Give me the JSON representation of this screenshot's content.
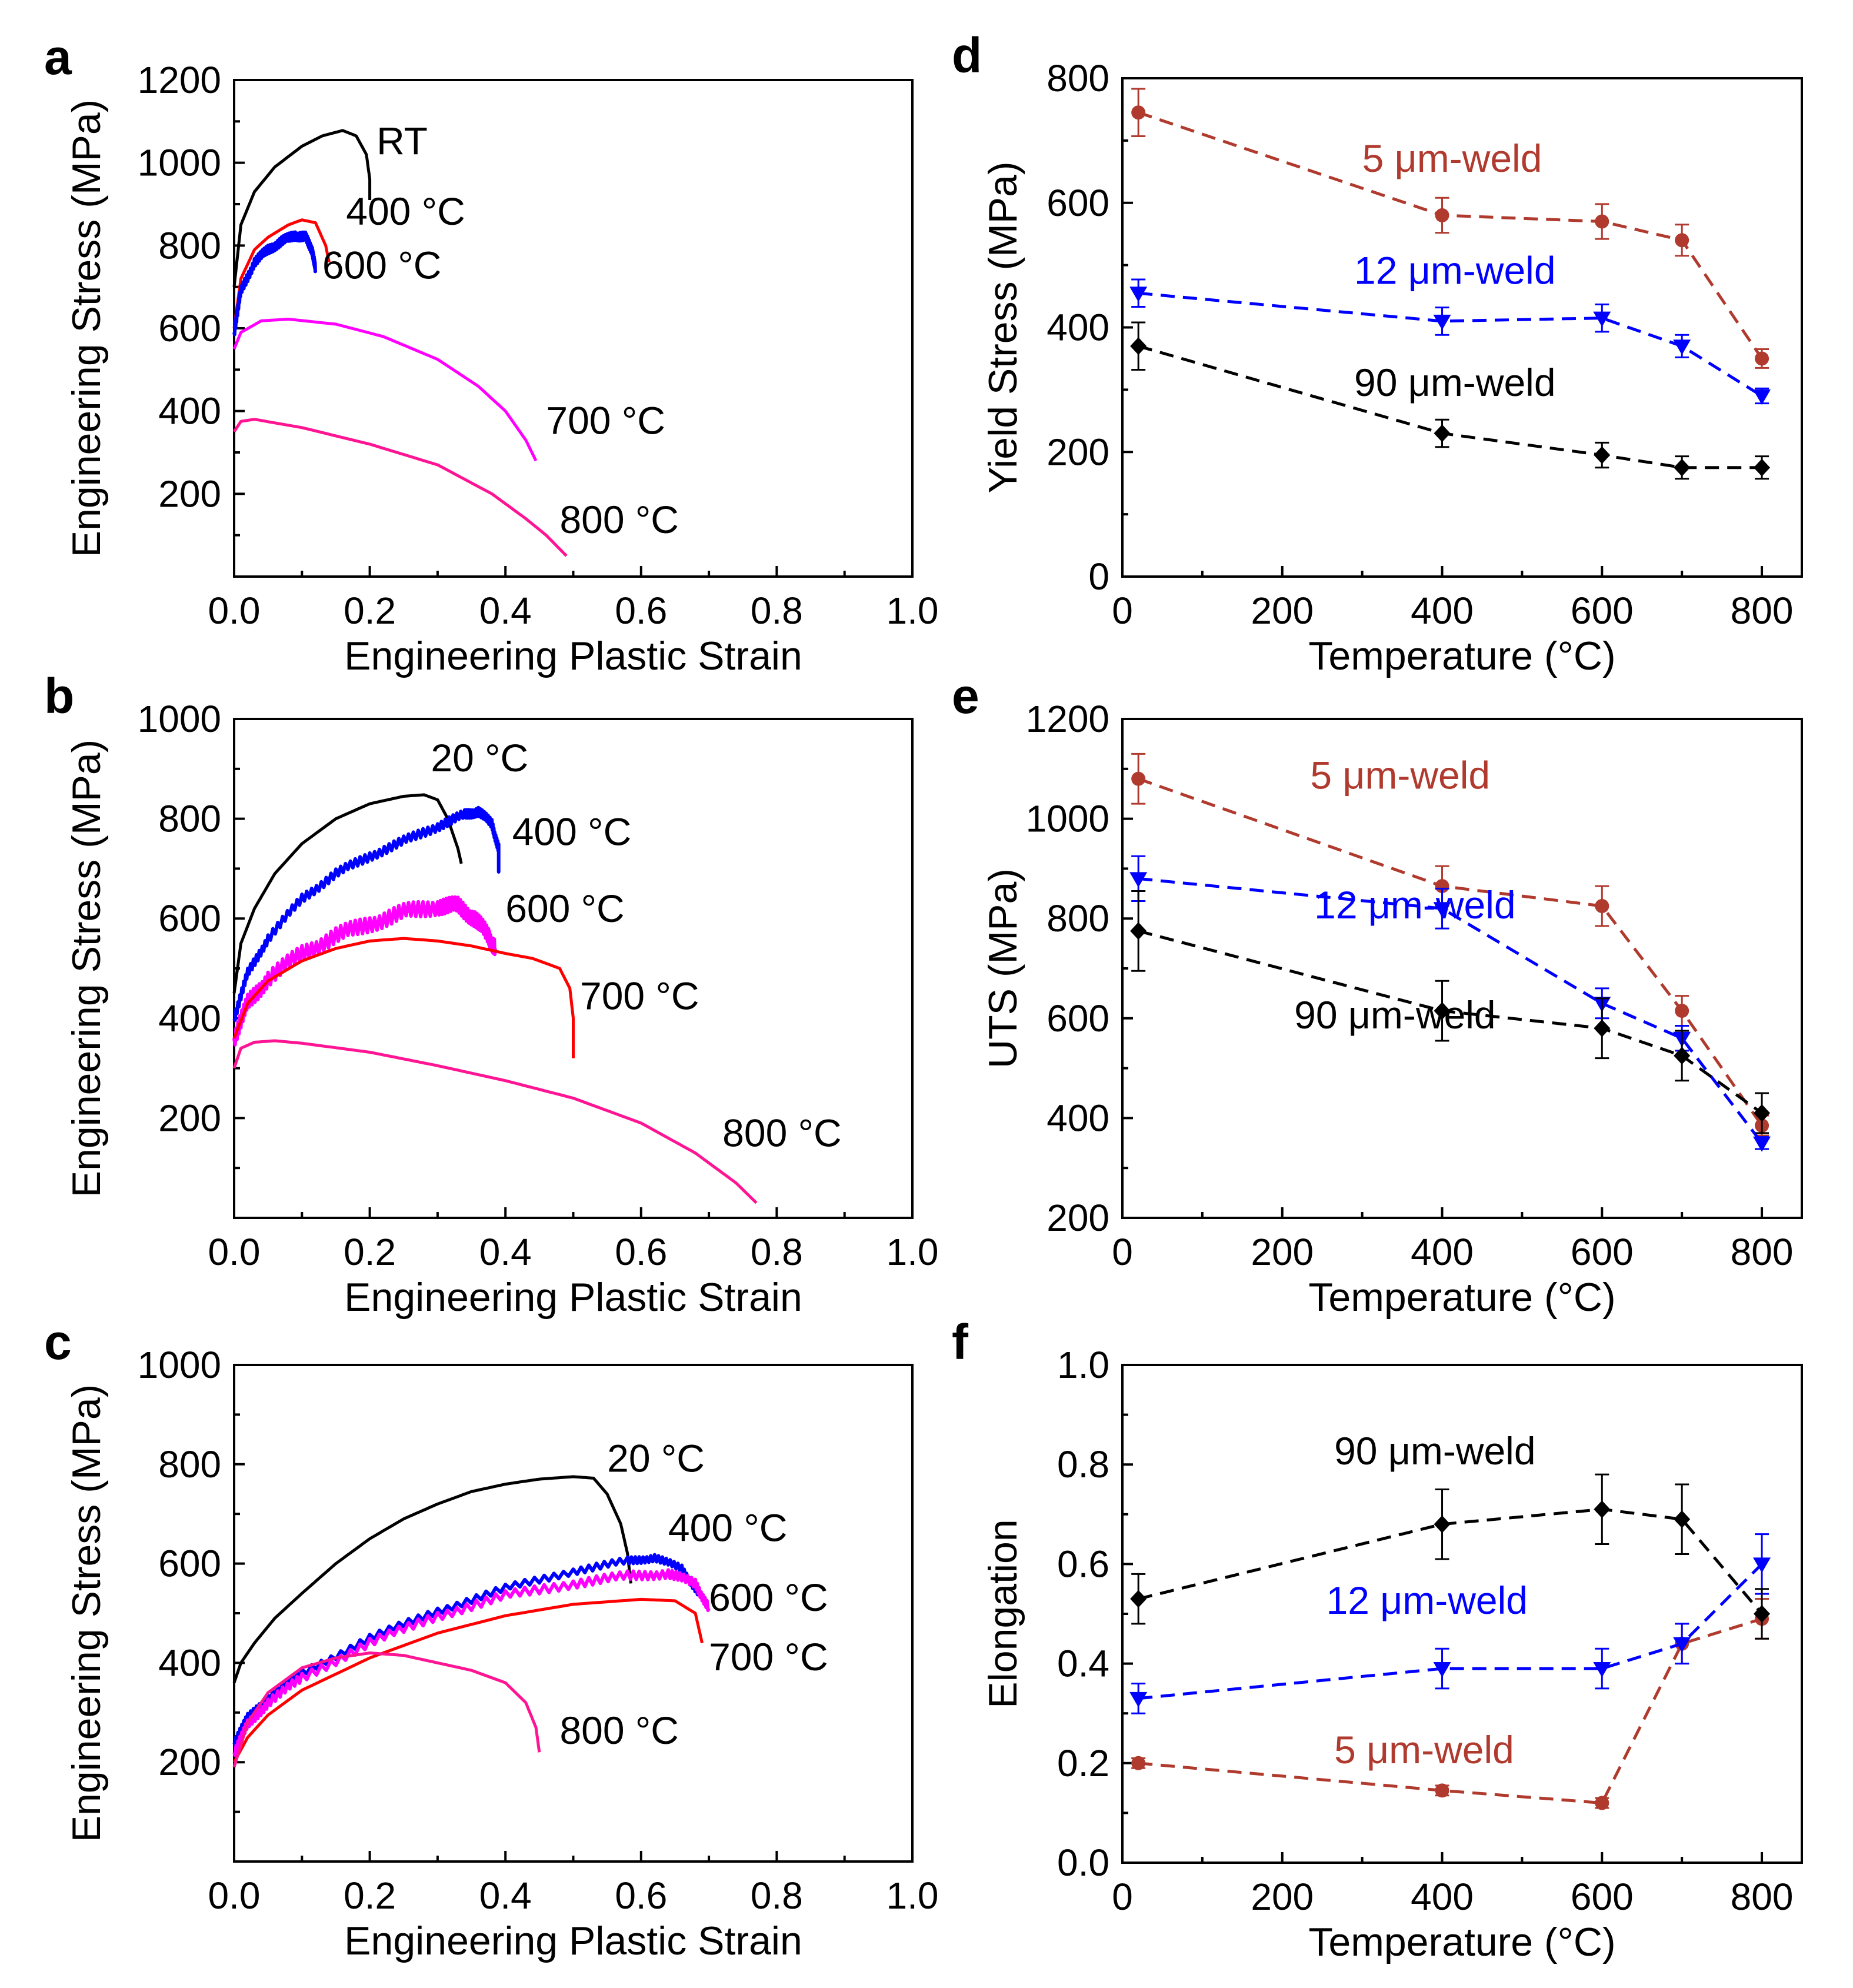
{
  "chart_data": [
    {
      "id": "a",
      "type": "line",
      "panel_label": "a",
      "xlabel": "Engineering Plastic Strain",
      "ylabel": "Engineering Stress (MPa)",
      "xlim": [
        0,
        1.0
      ],
      "ylim": [
        0,
        1200
      ],
      "xticks": [
        0,
        0.2,
        0.4,
        0.6,
        0.8,
        1.0
      ],
      "xtick_labels": [
        "0.0",
        "0.2",
        "0.4",
        "0.6",
        "0.8",
        "1.0"
      ],
      "yticks": [
        200,
        400,
        600,
        800,
        1000,
        1200
      ],
      "ytick_labels": [
        "200",
        "400",
        "600",
        "800",
        "1000",
        "1200"
      ],
      "series": [
        {
          "name": "RT",
          "color": "#000000",
          "label_at": [
            0.21,
            1020
          ],
          "x": [
            0,
            0.01,
            0.03,
            0.06,
            0.1,
            0.13,
            0.16,
            0.18,
            0.195,
            0.2,
            0.2
          ],
          "y": [
            700,
            850,
            930,
            990,
            1040,
            1065,
            1078,
            1065,
            1020,
            960,
            910
          ]
        },
        {
          "name": "400 °C",
          "color": "#ff0000",
          "label_at": [
            0.165,
            850
          ],
          "x": [
            0,
            0.01,
            0.03,
            0.05,
            0.08,
            0.1,
            0.12,
            0.135,
            0.14
          ],
          "y": [
            600,
            720,
            790,
            820,
            850,
            862,
            855,
            800,
            760
          ]
        },
        {
          "name": "600 °C",
          "color": "#0000ff",
          "noise": 12,
          "label_at": [
            0.13,
            720
          ],
          "x": [
            0,
            0.01,
            0.03,
            0.05,
            0.07,
            0.09,
            0.105,
            0.115,
            0.12
          ],
          "y": [
            590,
            690,
            760,
            790,
            810,
            825,
            820,
            790,
            740
          ]
        },
        {
          "name": "700 °C",
          "color": "#ff00ff",
          "label_at": [
            0.46,
            345
          ],
          "x": [
            0,
            0.01,
            0.04,
            0.08,
            0.15,
            0.22,
            0.3,
            0.36,
            0.4,
            0.43,
            0.445
          ],
          "y": [
            550,
            590,
            618,
            622,
            610,
            580,
            525,
            460,
            400,
            330,
            280
          ]
        },
        {
          "name": "800 °C",
          "color": "#ff1493",
          "label_at": [
            0.48,
            105
          ],
          "x": [
            0,
            0.01,
            0.03,
            0.1,
            0.2,
            0.3,
            0.38,
            0.43,
            0.46,
            0.49
          ],
          "y": [
            350,
            375,
            380,
            360,
            320,
            270,
            200,
            140,
            100,
            50
          ]
        }
      ]
    },
    {
      "id": "b",
      "type": "line",
      "panel_label": "b",
      "xlabel": "Engineering Plastic Strain",
      "ylabel": "Engineering Stress (MPa)",
      "xlim": [
        0,
        1.0
      ],
      "ylim": [
        0,
        1000
      ],
      "xticks": [
        0,
        0.2,
        0.4,
        0.6,
        0.8,
        1.0
      ],
      "xtick_labels": [
        "0.0",
        "0.2",
        "0.4",
        "0.6",
        "0.8",
        "1.0"
      ],
      "yticks": [
        200,
        400,
        600,
        800,
        1000
      ],
      "ytick_labels": [
        "200",
        "400",
        "600",
        "800",
        "1000"
      ],
      "series": [
        {
          "name": "20 °C",
          "color": "#000000",
          "label_at": [
            0.29,
            895
          ],
          "x": [
            0,
            0.01,
            0.03,
            0.06,
            0.1,
            0.15,
            0.2,
            0.25,
            0.28,
            0.3,
            0.315,
            0.33,
            0.335
          ],
          "y": [
            450,
            550,
            620,
            690,
            750,
            800,
            830,
            845,
            848,
            838,
            800,
            740,
            710
          ]
        },
        {
          "name": "400 °C",
          "color": "#0000ff",
          "noise": 10,
          "label_at": [
            0.41,
            747
          ],
          "x": [
            0,
            0.02,
            0.05,
            0.1,
            0.15,
            0.2,
            0.25,
            0.3,
            0.34,
            0.36,
            0.38,
            0.39,
            0.39
          ],
          "y": [
            400,
            490,
            560,
            640,
            690,
            725,
            755,
            785,
            808,
            815,
            790,
            740,
            700
          ]
        },
        {
          "name": "600 °C",
          "color": "#ff00ff",
          "noise": 18,
          "label_at": [
            0.4,
            593
          ],
          "x": [
            0,
            0.02,
            0.05,
            0.1,
            0.15,
            0.2,
            0.25,
            0.3,
            0.33,
            0.355,
            0.375,
            0.385
          ],
          "y": [
            360,
            430,
            480,
            530,
            565,
            590,
            612,
            625,
            625,
            600,
            565,
            540
          ]
        },
        {
          "name": "700 °C",
          "color": "#ff0000",
          "label_at": [
            0.51,
            418
          ],
          "x": [
            0,
            0.02,
            0.05,
            0.1,
            0.15,
            0.2,
            0.25,
            0.3,
            0.35,
            0.4,
            0.44,
            0.48,
            0.495,
            0.5,
            0.5
          ],
          "y": [
            360,
            430,
            475,
            515,
            540,
            555,
            560,
            555,
            545,
            530,
            520,
            500,
            460,
            400,
            320
          ]
        },
        {
          "name": "800 °C",
          "color": "#ff1493",
          "label_at": [
            0.72,
            143
          ],
          "x": [
            0,
            0.01,
            0.03,
            0.06,
            0.1,
            0.2,
            0.3,
            0.4,
            0.5,
            0.6,
            0.68,
            0.74,
            0.77
          ],
          "y": [
            300,
            340,
            352,
            355,
            350,
            332,
            305,
            275,
            240,
            190,
            130,
            70,
            30
          ]
        }
      ]
    },
    {
      "id": "c",
      "type": "line",
      "panel_label": "c",
      "xlabel": "Engineering Plastic Strain",
      "ylabel": "Engineering Stress (MPa)",
      "xlim": [
        0,
        1.0
      ],
      "ylim": [
        0,
        1000
      ],
      "xticks": [
        0,
        0.2,
        0.4,
        0.6,
        0.8,
        1.0
      ],
      "xtick_labels": [
        "0.0",
        "0.2",
        "0.4",
        "0.6",
        "0.8",
        "1.0"
      ],
      "yticks": [
        200,
        400,
        600,
        800,
        1000
      ],
      "ytick_labels": [
        "200",
        "400",
        "600",
        "800",
        "1000"
      ],
      "series": [
        {
          "name": "20 °C",
          "color": "#000000",
          "label_at": [
            0.55,
            785
          ],
          "x": [
            0,
            0.01,
            0.03,
            0.06,
            0.1,
            0.15,
            0.2,
            0.25,
            0.3,
            0.35,
            0.4,
            0.45,
            0.5,
            0.53,
            0.55,
            0.57,
            0.58,
            0.585
          ],
          "y": [
            360,
            400,
            440,
            490,
            540,
            600,
            650,
            690,
            720,
            745,
            760,
            770,
            775,
            772,
            740,
            680,
            620,
            560
          ]
        },
        {
          "name": "400 °C",
          "color": "#0000ff",
          "noise": 8,
          "label_at": [
            0.64,
            645
          ],
          "x": [
            0,
            0.02,
            0.05,
            0.1,
            0.2,
            0.3,
            0.4,
            0.5,
            0.58,
            0.62,
            0.66,
            0.685
          ],
          "y": [
            240,
            290,
            330,
            380,
            450,
            505,
            550,
            585,
            605,
            612,
            590,
            540
          ]
        },
        {
          "name": "600 °C",
          "color": "#ff00ff",
          "noise": 10,
          "label_at": [
            0.7,
            505
          ],
          "x": [
            0,
            0.02,
            0.05,
            0.1,
            0.2,
            0.3,
            0.4,
            0.5,
            0.58,
            0.64,
            0.68,
            0.7
          ],
          "y": [
            220,
            275,
            320,
            370,
            440,
            495,
            535,
            560,
            575,
            580,
            560,
            510
          ]
        },
        {
          "name": "700 °C",
          "color": "#ff0000",
          "label_at": [
            0.7,
            385
          ],
          "x": [
            0,
            0.02,
            0.05,
            0.1,
            0.2,
            0.3,
            0.4,
            0.5,
            0.6,
            0.65,
            0.68,
            0.69
          ],
          "y": [
            200,
            250,
            295,
            345,
            410,
            460,
            495,
            518,
            528,
            525,
            500,
            440
          ]
        },
        {
          "name": "800 °C",
          "color": "#ff1493",
          "label_at": [
            0.48,
            237
          ],
          "x": [
            0,
            0.02,
            0.05,
            0.1,
            0.15,
            0.2,
            0.25,
            0.3,
            0.35,
            0.4,
            0.43,
            0.445,
            0.45
          ],
          "y": [
            190,
            280,
            340,
            390,
            410,
            420,
            415,
            400,
            385,
            360,
            320,
            270,
            220
          ]
        }
      ]
    },
    {
      "id": "d",
      "type": "line",
      "panel_label": "d",
      "xlabel": "Temperature (°C)",
      "ylabel": "Yield Stress (MPa)",
      "xlim": [
        0,
        850
      ],
      "ylim": [
        0,
        800
      ],
      "xticks": [
        0,
        200,
        400,
        600,
        800
      ],
      "xtick_labels": [
        "0",
        "200",
        "400",
        "600",
        "800"
      ],
      "yticks": [
        0,
        200,
        400,
        600,
        800
      ],
      "ytick_labels": [
        "0",
        "200",
        "400",
        "600",
        "800"
      ],
      "x": [
        20,
        400,
        600,
        700,
        800
      ],
      "series": [
        {
          "name": "5 μm-weld",
          "color": "#b03a2e",
          "marker": "circle",
          "label_at": [
            300,
            650
          ],
          "values": [
            745,
            580,
            570,
            540,
            350
          ],
          "errors": [
            38,
            28,
            28,
            25,
            15
          ]
        },
        {
          "name": "12 μm-weld",
          "color": "#0000ff",
          "marker": "triangle",
          "label_at": [
            290,
            470
          ],
          "values": [
            455,
            410,
            415,
            370,
            290
          ],
          "errors": [
            22,
            22,
            22,
            18,
            12
          ]
        },
        {
          "name": "90 μm-weld",
          "color": "#000000",
          "marker": "diamond",
          "label_at": [
            290,
            290
          ],
          "values": [
            370,
            230,
            195,
            175,
            175
          ],
          "errors": [
            38,
            22,
            20,
            18,
            18
          ]
        }
      ]
    },
    {
      "id": "e",
      "type": "line",
      "panel_label": "e",
      "xlabel": "Temperature (°C)",
      "ylabel": "UTS (MPa)",
      "xlim": [
        0,
        850
      ],
      "ylim": [
        200,
        1200
      ],
      "xticks": [
        0,
        200,
        400,
        600,
        800
      ],
      "xtick_labels": [
        "0",
        "200",
        "400",
        "600",
        "800"
      ],
      "yticks": [
        200,
        400,
        600,
        800,
        1000,
        1200
      ],
      "ytick_labels": [
        "200",
        "400",
        "600",
        "800",
        "1000",
        "1200"
      ],
      "x": [
        20,
        400,
        600,
        700,
        800
      ],
      "series": [
        {
          "name": "5 μm-weld",
          "color": "#b03a2e",
          "marker": "circle",
          "label_at": [
            235,
            1060
          ],
          "values": [
            1080,
            865,
            825,
            615,
            385
          ],
          "errors": [
            50,
            40,
            40,
            30,
            20
          ]
        },
        {
          "name": "12 μm-weld",
          "color": "#0000ff",
          "marker": "triangle",
          "label_at": [
            240,
            800
          ],
          "values": [
            880,
            820,
            630,
            560,
            350
          ],
          "errors": [
            45,
            40,
            30,
            25,
            12
          ]
        },
        {
          "name": "90 μm-weld",
          "color": "#000000",
          "marker": "diamond",
          "label_at": [
            215,
            580
          ],
          "values": [
            775,
            615,
            580,
            525,
            410
          ],
          "errors": [
            80,
            60,
            60,
            50,
            40
          ]
        }
      ]
    },
    {
      "id": "f",
      "type": "line",
      "panel_label": "f",
      "xlabel": "Temperature (°C)",
      "ylabel": "Elongation",
      "xlim": [
        0,
        850
      ],
      "ylim": [
        0,
        1.0
      ],
      "xticks": [
        0,
        200,
        400,
        600,
        800
      ],
      "xtick_labels": [
        "0",
        "200",
        "400",
        "600",
        "800"
      ],
      "yticks": [
        0,
        0.2,
        0.4,
        0.6,
        0.8,
        1.0
      ],
      "ytick_labels": [
        "0.0",
        "0.2",
        "0.4",
        "0.6",
        "0.8",
        "1.0"
      ],
      "x": [
        20,
        400,
        600,
        700,
        800
      ],
      "series": [
        {
          "name": "5 μm-weld",
          "color": "#b03a2e",
          "marker": "circle",
          "label_at": [
            265,
            0.2
          ],
          "values": [
            0.2,
            0.145,
            0.12,
            0.44,
            0.49
          ],
          "errors": [
            0.01,
            0.01,
            0.01,
            0.04,
            0.04
          ]
        },
        {
          "name": "12 μm-weld",
          "color": "#0000ff",
          "marker": "triangle",
          "label_at": [
            255,
            0.5
          ],
          "values": [
            0.33,
            0.39,
            0.39,
            0.44,
            0.6
          ],
          "errors": [
            0.03,
            0.04,
            0.04,
            0.04,
            0.06
          ]
        },
        {
          "name": "90 μm-weld",
          "color": "#000000",
          "marker": "diamond",
          "label_at": [
            265,
            0.8
          ],
          "values": [
            0.53,
            0.68,
            0.71,
            0.69,
            0.5
          ],
          "errors": [
            0.05,
            0.07,
            0.07,
            0.07,
            0.05
          ]
        }
      ]
    }
  ]
}
